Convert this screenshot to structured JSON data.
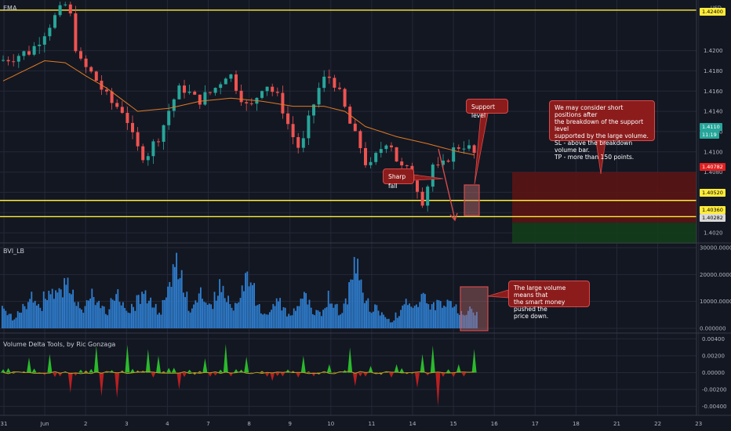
{
  "colors": {
    "background": "#131722",
    "grid": "#242838",
    "axis_text": "#b2b5be",
    "up": "#26a69a",
    "down": "#ef5350",
    "ema": "#e07a24",
    "level_line": "#ffeb3b",
    "volume_bar": "#2f7fd1",
    "annotation_bg": "#8c1c1c",
    "annotation_border": "#d44b4b",
    "stop_zone": "#5b1414",
    "target_zone": "#143d1b",
    "delta_pos": "#2ecc2e",
    "delta_neg": "#cc2020",
    "delta_mid": "#b8a020"
  },
  "panes": {
    "price_label": "EMA",
    "volume_label": "BVI_LB",
    "delta_label": "Volume Delta Tools, by Ric Gonzaga"
  },
  "price_axis": {
    "ticks": [
      "1.4200",
      "1.4180",
      "1.4160",
      "1.4140",
      "1.4120",
      "1.4100",
      "1.4080",
      "1.4060",
      "1.4040",
      "1.4020"
    ],
    "currency": "USD",
    "top_tag": "1.42400",
    "current_price": "1.4110",
    "countdown": "11:19",
    "red_tag": "1.40782",
    "level_tag_1": "1.40520",
    "level_tag_2": "1.40360",
    "low_tag": "1.40282"
  },
  "volume_axis": {
    "ticks": [
      "30000.000000",
      "20000.000000",
      "10000.000000",
      "0.000000"
    ]
  },
  "delta_axis": {
    "ticks": [
      "0.00400",
      "0.00200",
      "0.00000",
      "-0.00200",
      "-0.00400"
    ]
  },
  "time_axis": {
    "labels": [
      "31",
      "Jun",
      "2",
      "3",
      "4",
      "7",
      "8",
      "9",
      "10",
      "11",
      "14",
      "15",
      "16",
      "17",
      "18",
      "21",
      "22",
      "23"
    ]
  },
  "annotations": {
    "trade_idea": [
      "We may consider short positions after",
      "the breakdown of the support level",
      "supported by the large volume.",
      "SL - above the breakdown volume bar.",
      "TP - more than 150 points."
    ],
    "support": "Support level",
    "sharp_fall": "Sharp fall",
    "volume_note": [
      "The large volume means that",
      "the smart money pushed the",
      "price down."
    ]
  },
  "chart_data": [
    {
      "type": "candlestick",
      "title": "EMA",
      "x_range": [
        "31",
        "23"
      ],
      "ylim": [
        1.401,
        1.425
      ],
      "levels": [
        1.424,
        1.4052,
        1.4036
      ],
      "path_points": [
        [
          0,
          1.419
        ],
        [
          6,
          1.42
        ],
        [
          10,
          1.423
        ],
        [
          13,
          1.4248
        ],
        [
          15,
          1.419
        ],
        [
          18,
          1.4175
        ],
        [
          21,
          1.415
        ],
        [
          24,
          1.414
        ],
        [
          26,
          1.4105
        ],
        [
          28,
          1.4095
        ],
        [
          31,
          1.412
        ],
        [
          33,
          1.4148
        ],
        [
          35,
          1.4165
        ],
        [
          38,
          1.415
        ],
        [
          41,
          1.416
        ],
        [
          44,
          1.418
        ],
        [
          46,
          1.416
        ],
        [
          48,
          1.414
        ],
        [
          51,
          1.417
        ],
        [
          54,
          1.415
        ],
        [
          56,
          1.412
        ],
        [
          58,
          1.41
        ],
        [
          60,
          1.414
        ],
        [
          62,
          1.417
        ],
        [
          64,
          1.4175
        ],
        [
          66,
          1.415
        ],
        [
          68,
          1.412
        ],
        [
          70,
          1.41
        ],
        [
          71,
          1.408
        ],
        [
          73,
          1.41
        ],
        [
          75,
          1.4115
        ],
        [
          77,
          1.4085
        ],
        [
          79,
          1.408
        ],
        [
          81,
          1.406
        ],
        [
          82,
          1.4045
        ],
        [
          83,
          1.409
        ],
        [
          85,
          1.408
        ],
        [
          86,
          1.4092
        ],
        [
          88,
          1.4105
        ],
        [
          90,
          1.4108
        ],
        [
          91,
          1.4098
        ]
      ],
      "ema_points": [
        [
          0,
          1.417
        ],
        [
          8,
          1.419
        ],
        [
          12,
          1.4188
        ],
        [
          16,
          1.4175
        ],
        [
          20,
          1.4163
        ],
        [
          26,
          1.414
        ],
        [
          32,
          1.4143
        ],
        [
          38,
          1.415
        ],
        [
          44,
          1.4153
        ],
        [
          50,
          1.415
        ],
        [
          56,
          1.4145
        ],
        [
          62,
          1.4145
        ],
        [
          66,
          1.414
        ],
        [
          70,
          1.4125
        ],
        [
          76,
          1.4115
        ],
        [
          82,
          1.4108
        ],
        [
          88,
          1.41
        ],
        [
          91,
          1.4097
        ]
      ]
    },
    {
      "type": "bar",
      "title": "BVI_LB",
      "ylim": [
        0,
        30000
      ],
      "peaks": [
        [
          0,
          8500
        ],
        [
          5,
          14000
        ],
        [
          9,
          19000
        ],
        [
          12,
          23000
        ],
        [
          17,
          17000
        ],
        [
          22,
          15000
        ],
        [
          27,
          18500
        ],
        [
          33,
          30000
        ],
        [
          38,
          16000
        ],
        [
          42,
          20000
        ],
        [
          47,
          23000
        ],
        [
          53,
          13000
        ],
        [
          58,
          15000
        ],
        [
          63,
          14000
        ],
        [
          68,
          27000
        ],
        [
          72,
          9000
        ],
        [
          78,
          12000
        ],
        [
          81,
          14000
        ],
        [
          84,
          13000
        ],
        [
          86,
          14500
        ],
        [
          88,
          7000
        ],
        [
          90,
          9500
        ]
      ]
    },
    {
      "type": "line",
      "title": "Volume Delta Tools, by Ric Gonzaga",
      "ylim": [
        -0.0045,
        0.0045
      ],
      "spikes": [
        [
          5,
          0.0018
        ],
        [
          9,
          0.0022
        ],
        [
          13,
          -0.0024
        ],
        [
          18,
          0.0032
        ],
        [
          19,
          -0.0028
        ],
        [
          22,
          -0.003
        ],
        [
          24,
          0.0033
        ],
        [
          28,
          0.0028
        ],
        [
          30,
          0.002
        ],
        [
          34,
          -0.002
        ],
        [
          39,
          0.0017
        ],
        [
          43,
          0.0034
        ],
        [
          47,
          0.0019
        ],
        [
          52,
          -0.001
        ],
        [
          58,
          0.002
        ],
        [
          63,
          0.001
        ],
        [
          67,
          0.003
        ],
        [
          68,
          -0.0016
        ],
        [
          71,
          0.0008
        ],
        [
          76,
          0.001
        ],
        [
          80,
          -0.0018
        ],
        [
          81,
          0.0022
        ],
        [
          83,
          0.0032
        ],
        [
          84,
          -0.004
        ],
        [
          88,
          0.001
        ],
        [
          91,
          0.0028
        ]
      ]
    }
  ]
}
